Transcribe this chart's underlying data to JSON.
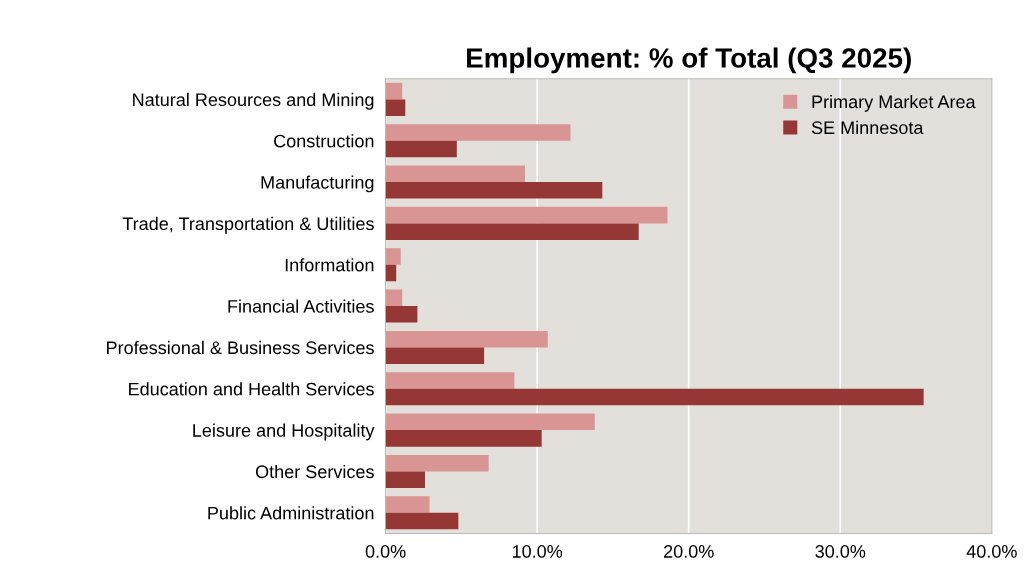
{
  "chart_data": {
    "type": "bar",
    "orientation": "horizontal",
    "title": "Employment: % of Total (Q3 2025)",
    "categories": [
      "Natural Resources and Mining",
      "Construction",
      "Manufacturing",
      "Trade, Transportation & Utilities",
      "Information",
      "Financial Activities",
      "Professional & Business Services",
      "Education and Health Services",
      "Leisure and Hospitality",
      "Other Services",
      "Public Administration"
    ],
    "series": [
      {
        "name": "Primary Market Area",
        "color": "#d99594",
        "values": [
          1.1,
          12.2,
          9.2,
          18.6,
          1.0,
          1.1,
          10.7,
          8.5,
          13.8,
          6.8,
          2.9
        ]
      },
      {
        "name": "SE Minnesota",
        "color": "#953735",
        "values": [
          1.3,
          4.7,
          14.3,
          16.7,
          0.7,
          2.1,
          6.5,
          35.5,
          10.3,
          2.6,
          4.8
        ]
      }
    ],
    "xlim": [
      0,
      40
    ],
    "xticks": [
      {
        "value": 0,
        "label": "0.0%"
      },
      {
        "value": 10,
        "label": "10.0%"
      },
      {
        "value": 20,
        "label": "20.0%"
      },
      {
        "value": 30,
        "label": "30.0%"
      },
      {
        "value": 40,
        "label": "40.0%"
      }
    ],
    "grid": "x",
    "legend": "top right"
  }
}
